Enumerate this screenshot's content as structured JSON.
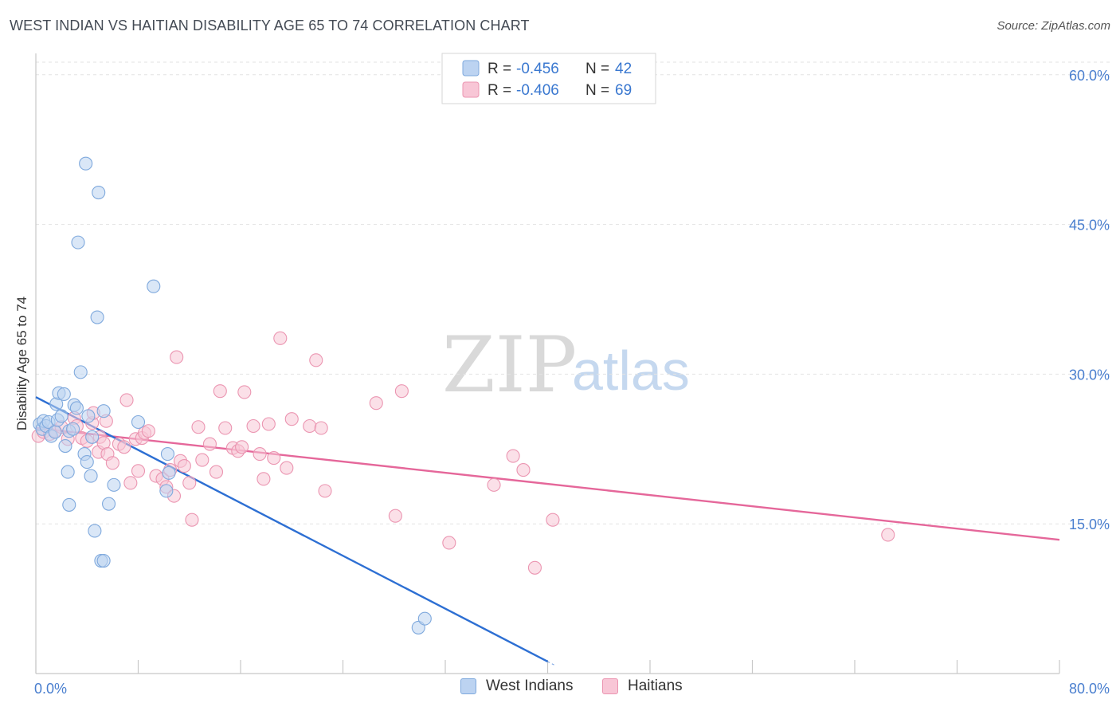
{
  "title": "WEST INDIAN VS HAITIAN DISABILITY AGE 65 TO 74 CORRELATION CHART",
  "source": "Source: ZipAtlas.com",
  "watermark": {
    "zip": "ZIP",
    "atlas": "atlas"
  },
  "colors": {
    "blue_fill": "#bcd3f1",
    "blue_stroke": "#7fa9dd",
    "blue_line": "#2d6fd3",
    "pink_fill": "#f8c6d6",
    "pink_stroke": "#eb95b1",
    "pink_line": "#e5679a",
    "tick_label": "#4a7fcf",
    "grid": "#e3e3e3",
    "axis": "#c8c8c8"
  },
  "legend_top": [
    {
      "series": "West Indians",
      "r_label": "R =",
      "r_value": "-0.456",
      "n_label": "N =",
      "n_value": "42"
    },
    {
      "series": "Haitians",
      "r_label": "R =",
      "r_value": "-0.406",
      "n_label": "N =",
      "n_value": "69"
    }
  ],
  "chart_data": {
    "type": "scatter",
    "title": "WEST INDIAN VS HAITIAN DISABILITY AGE 65 TO 74 CORRELATION CHART",
    "xlabel": "",
    "ylabel": "Disability Age 65 to 74",
    "xlim": [
      0,
      80
    ],
    "ylim": [
      0,
      61.5
    ],
    "x_tick_labels": [
      "0.0%",
      "80.0%"
    ],
    "y_ticks": [
      15,
      30,
      45,
      60
    ],
    "y_tick_labels": [
      "15.0%",
      "30.0%",
      "45.0%",
      "60.0%"
    ],
    "grid": true,
    "legend_position": "top-center",
    "series": [
      {
        "name": "West Indians",
        "color": "#7fa9dd",
        "points": [
          [
            0.3,
            25.0
          ],
          [
            0.5,
            24.5
          ],
          [
            0.6,
            25.3
          ],
          [
            0.8,
            24.8
          ],
          [
            1.0,
            25.2
          ],
          [
            1.2,
            23.8
          ],
          [
            1.5,
            24.2
          ],
          [
            1.7,
            25.4
          ],
          [
            2.0,
            25.8
          ],
          [
            1.6,
            27.0
          ],
          [
            1.8,
            28.1
          ],
          [
            2.2,
            28.0
          ],
          [
            2.6,
            24.3
          ],
          [
            2.9,
            24.5
          ],
          [
            3.0,
            26.9
          ],
          [
            3.2,
            26.6
          ],
          [
            3.5,
            30.2
          ],
          [
            2.3,
            22.8
          ],
          [
            2.5,
            20.2
          ],
          [
            2.6,
            16.9
          ],
          [
            3.8,
            22.0
          ],
          [
            4.0,
            21.2
          ],
          [
            4.1,
            25.8
          ],
          [
            4.3,
            19.8
          ],
          [
            4.4,
            23.7
          ],
          [
            4.6,
            14.3
          ],
          [
            4.8,
            35.7
          ],
          [
            3.3,
            43.2
          ],
          [
            3.9,
            51.1
          ],
          [
            4.9,
            48.2
          ],
          [
            5.1,
            11.3
          ],
          [
            5.3,
            11.3
          ],
          [
            5.3,
            26.3
          ],
          [
            5.7,
            17.0
          ],
          [
            6.1,
            18.9
          ],
          [
            8.0,
            25.2
          ],
          [
            9.2,
            38.8
          ],
          [
            10.2,
            18.3
          ],
          [
            10.3,
            22.0
          ],
          [
            10.4,
            20.1
          ],
          [
            29.9,
            4.6
          ],
          [
            30.4,
            5.5
          ]
        ]
      },
      {
        "name": "Haitians",
        "color": "#eb95b1",
        "points": [
          [
            0.2,
            23.8
          ],
          [
            0.6,
            24.2
          ],
          [
            1.1,
            24.0
          ],
          [
            1.5,
            24.3
          ],
          [
            2.0,
            24.7
          ],
          [
            2.5,
            23.5
          ],
          [
            3.0,
            25.6
          ],
          [
            3.2,
            24.8
          ],
          [
            3.6,
            23.6
          ],
          [
            4.0,
            23.3
          ],
          [
            4.4,
            25.1
          ],
          [
            4.5,
            26.1
          ],
          [
            4.9,
            22.2
          ],
          [
            5.0,
            23.7
          ],
          [
            5.3,
            23.1
          ],
          [
            5.5,
            25.3
          ],
          [
            5.6,
            22.0
          ],
          [
            6.0,
            21.1
          ],
          [
            6.5,
            23.0
          ],
          [
            6.9,
            22.7
          ],
          [
            7.1,
            27.4
          ],
          [
            7.4,
            19.1
          ],
          [
            7.8,
            23.5
          ],
          [
            8.0,
            20.3
          ],
          [
            8.3,
            23.6
          ],
          [
            8.5,
            24.1
          ],
          [
            8.8,
            24.3
          ],
          [
            9.4,
            19.8
          ],
          [
            9.9,
            19.5
          ],
          [
            10.2,
            18.7
          ],
          [
            10.5,
            20.4
          ],
          [
            10.8,
            17.8
          ],
          [
            11.0,
            31.7
          ],
          [
            11.3,
            21.3
          ],
          [
            11.6,
            20.8
          ],
          [
            12.0,
            19.1
          ],
          [
            12.2,
            15.4
          ],
          [
            12.7,
            24.7
          ],
          [
            13.0,
            21.4
          ],
          [
            13.6,
            23.0
          ],
          [
            14.1,
            20.2
          ],
          [
            14.4,
            28.3
          ],
          [
            14.8,
            24.6
          ],
          [
            15.4,
            22.6
          ],
          [
            15.8,
            22.3
          ],
          [
            16.1,
            22.7
          ],
          [
            16.3,
            28.2
          ],
          [
            17.0,
            24.8
          ],
          [
            17.5,
            22.0
          ],
          [
            17.8,
            19.5
          ],
          [
            18.2,
            25.0
          ],
          [
            18.6,
            21.6
          ],
          [
            19.1,
            33.6
          ],
          [
            19.6,
            20.6
          ],
          [
            20.0,
            25.5
          ],
          [
            21.4,
            24.8
          ],
          [
            21.9,
            31.4
          ],
          [
            22.3,
            24.6
          ],
          [
            22.6,
            18.3
          ],
          [
            26.6,
            27.1
          ],
          [
            28.1,
            15.8
          ],
          [
            28.6,
            28.3
          ],
          [
            32.3,
            13.1
          ],
          [
            35.8,
            18.9
          ],
          [
            37.3,
            21.8
          ],
          [
            38.1,
            20.4
          ],
          [
            39.0,
            10.6
          ],
          [
            40.4,
            15.4
          ],
          [
            66.6,
            13.9
          ]
        ]
      }
    ],
    "trend_lines": [
      {
        "series": "West Indians",
        "x": [
          0,
          40.0
        ],
        "y": [
          27.7,
          1.2
        ],
        "dashed_extension_to_x": 40.5
      },
      {
        "series": "Haitians",
        "x": [
          0,
          80.0
        ],
        "y": [
          24.6,
          13.4
        ]
      }
    ]
  }
}
